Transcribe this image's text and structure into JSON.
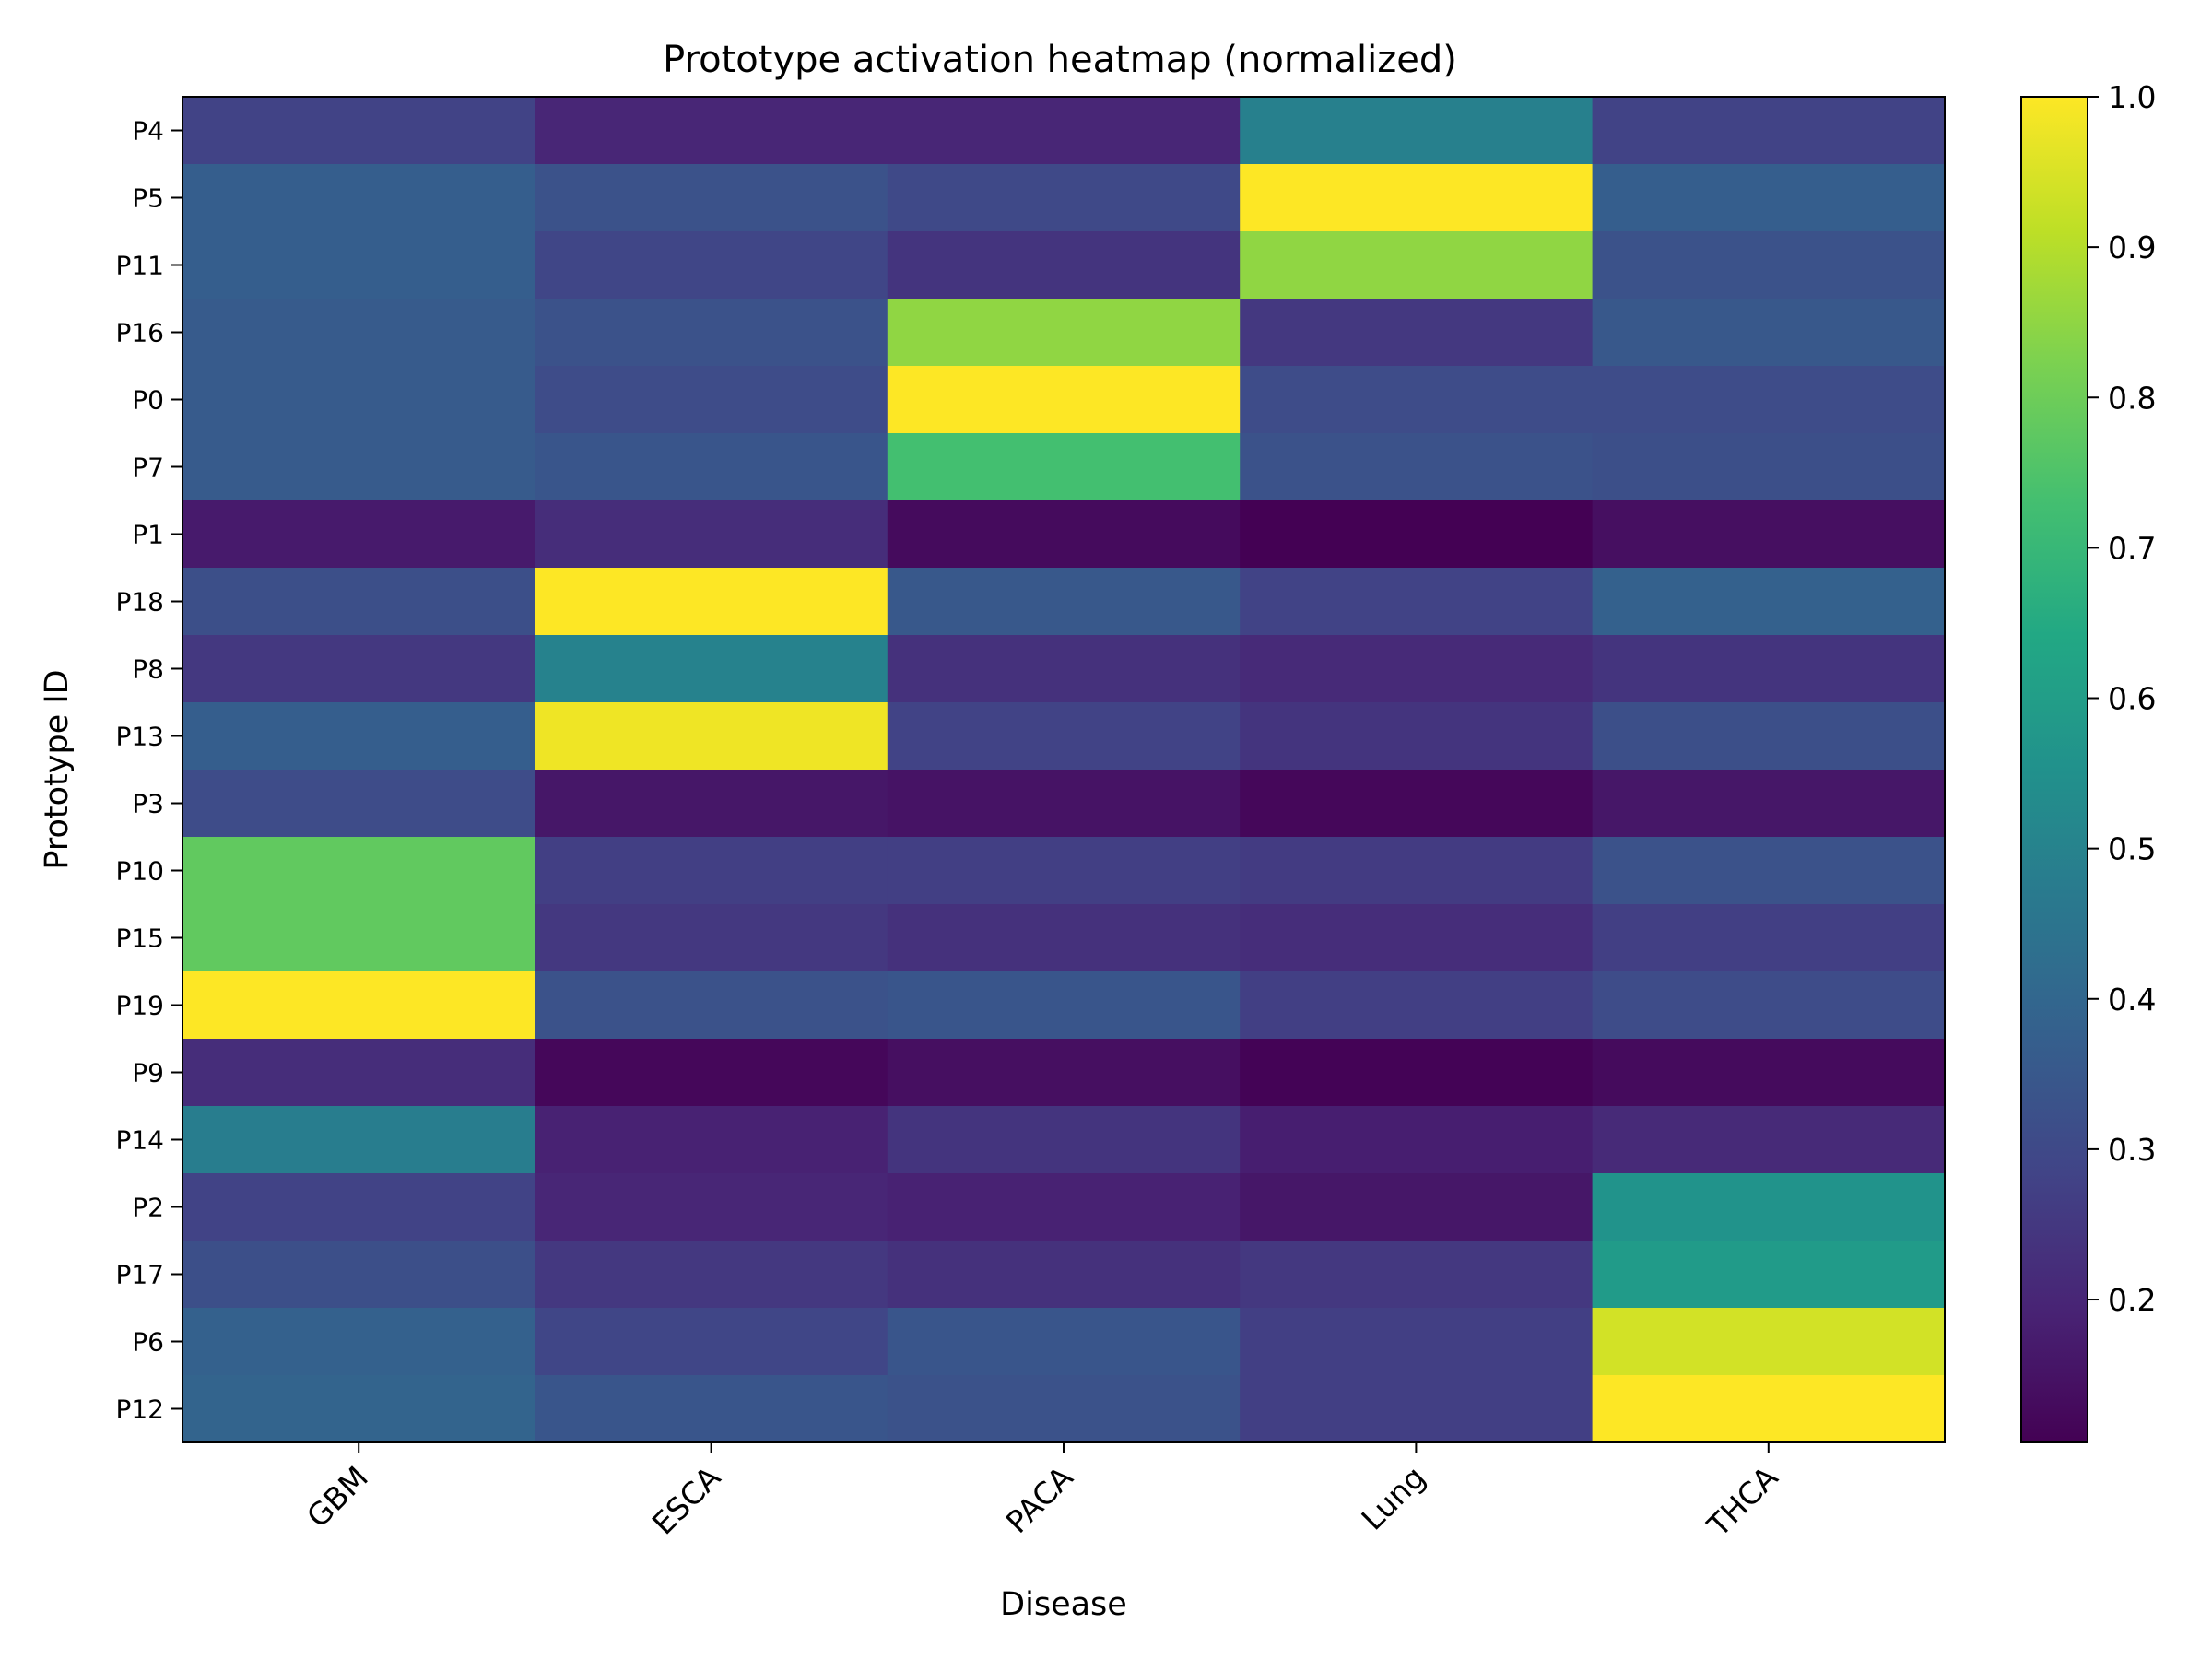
{
  "chart_data": {
    "type": "heatmap",
    "title": "Prototype activation heatmap (normalized)",
    "xlabel": "Disease",
    "ylabel": "Prototype ID",
    "x_categories": [
      "GBM",
      "ESCA",
      "PACA",
      "Lung",
      "THCA"
    ],
    "y_categories": [
      "P4",
      "P5",
      "P11",
      "P16",
      "P0",
      "P7",
      "P1",
      "P18",
      "P8",
      "P13",
      "P3",
      "P10",
      "P15",
      "P19",
      "P9",
      "P14",
      "P2",
      "P17",
      "P6",
      "P12"
    ],
    "values": [
      [
        0.28,
        0.2,
        0.2,
        0.49,
        0.28
      ],
      [
        0.37,
        0.33,
        0.3,
        1.0,
        0.37
      ],
      [
        0.37,
        0.29,
        0.24,
        0.85,
        0.33
      ],
      [
        0.36,
        0.33,
        0.85,
        0.25,
        0.35
      ],
      [
        0.36,
        0.31,
        1.0,
        0.31,
        0.31
      ],
      [
        0.36,
        0.34,
        0.73,
        0.33,
        0.32
      ],
      [
        0.17,
        0.22,
        0.13,
        0.1,
        0.14
      ],
      [
        0.32,
        1.0,
        0.35,
        0.28,
        0.38
      ],
      [
        0.25,
        0.5,
        0.23,
        0.21,
        0.24
      ],
      [
        0.37,
        0.98,
        0.28,
        0.24,
        0.32
      ],
      [
        0.31,
        0.16,
        0.15,
        0.12,
        0.16
      ],
      [
        0.78,
        0.27,
        0.27,
        0.26,
        0.33
      ],
      [
        0.78,
        0.25,
        0.23,
        0.22,
        0.27
      ],
      [
        1.0,
        0.33,
        0.34,
        0.27,
        0.31
      ],
      [
        0.22,
        0.12,
        0.14,
        0.11,
        0.13
      ],
      [
        0.48,
        0.19,
        0.24,
        0.18,
        0.21
      ],
      [
        0.28,
        0.2,
        0.19,
        0.16,
        0.56
      ],
      [
        0.32,
        0.25,
        0.23,
        0.25,
        0.59
      ],
      [
        0.38,
        0.29,
        0.34,
        0.27,
        0.94
      ],
      [
        0.39,
        0.34,
        0.33,
        0.27,
        1.0
      ]
    ],
    "colormap": "viridis",
    "colorbar": {
      "range": [
        0.105,
        1.0
      ],
      "ticks": [
        0.2,
        0.3,
        0.4,
        0.5,
        0.6,
        0.7,
        0.8,
        0.9,
        1.0
      ],
      "tick_labels": [
        "0.2",
        "0.3",
        "0.4",
        "0.5",
        "0.6",
        "0.7",
        "0.8",
        "0.9",
        "1.0"
      ]
    }
  }
}
